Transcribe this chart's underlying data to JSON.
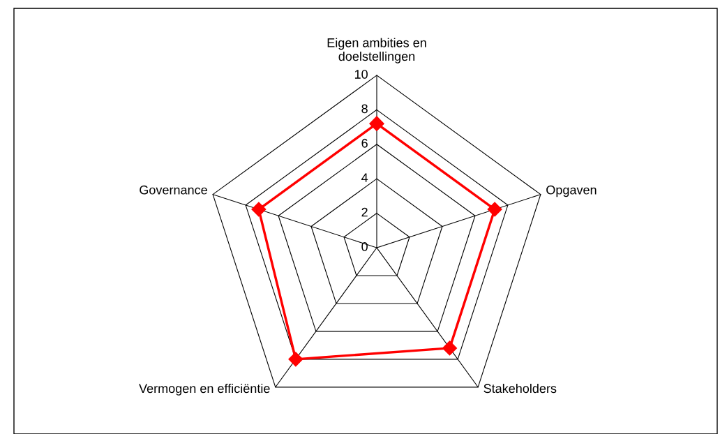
{
  "chart_data": {
    "type": "radar",
    "categories": [
      "Eigen ambities en doelstellingen",
      "Opgaven",
      "Stakeholders",
      "Vermogen en efficiëntie",
      "Governance"
    ],
    "series": [
      {
        "color": "#ff0000",
        "values": [
          7.2,
          7.2,
          7.2,
          8.0,
          7.2
        ]
      }
    ],
    "ylim": [
      0,
      10
    ],
    "yticks": [
      0,
      2,
      4,
      6,
      8,
      10
    ],
    "grid": true,
    "marker": "diamond",
    "line_style": "solid"
  }
}
